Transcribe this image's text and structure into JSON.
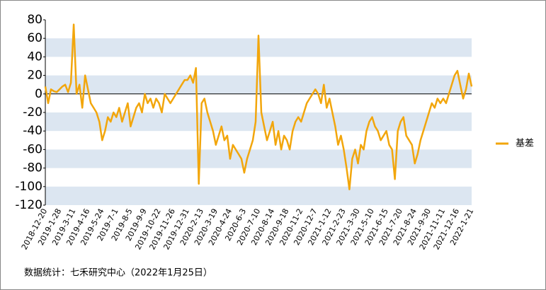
{
  "chart_data": {
    "type": "line",
    "categories": [
      "2018-12-20",
      null,
      null,
      null,
      null,
      "2019-1-28",
      null,
      null,
      null,
      null,
      "2019-3-11",
      null,
      null,
      null,
      null,
      "2019-4-16",
      null,
      null,
      null,
      null,
      "2019-5-24",
      null,
      null,
      null,
      null,
      "2019-7-1",
      null,
      null,
      null,
      null,
      "2019-8-5",
      null,
      null,
      null,
      null,
      "2019-9-9",
      null,
      null,
      null,
      null,
      "2019-10-22",
      null,
      null,
      null,
      null,
      "2019-11-26",
      null,
      null,
      null,
      null,
      "2019-12-31",
      null,
      null,
      null,
      null,
      "2020-2-13",
      null,
      null,
      null,
      null,
      "2020-3-19",
      null,
      null,
      null,
      null,
      "2020-4-24",
      null,
      null,
      null,
      null,
      "2020-6-3",
      null,
      null,
      null,
      null,
      "2020-7-10",
      null,
      null,
      null,
      null,
      "2020-8-14",
      null,
      null,
      null,
      null,
      "2020-9-18",
      null,
      null,
      null,
      null,
      "2020-11-2",
      null,
      null,
      null,
      null,
      "2020-12-7",
      null,
      null,
      null,
      null,
      "2021-1-12",
      null,
      null,
      null,
      null,
      "2021-2-23",
      null,
      null,
      null,
      null,
      "2021-3-30",
      null,
      null,
      null,
      null,
      "2021-5-10",
      null,
      null,
      null,
      null,
      "2021-6-15",
      null,
      null,
      null,
      null,
      "2021-7-20",
      null,
      null,
      null,
      null,
      "2021-8-24",
      null,
      null,
      null,
      null,
      "2021-9-30",
      null,
      null,
      null,
      null,
      "2021-11-11",
      null,
      null,
      null,
      null,
      "2021-12-16",
      null,
      null,
      null,
      null,
      "2022-1-21"
    ],
    "series": [
      {
        "name": "基差",
        "color": "#f2a60c",
        "values": [
          8,
          -10,
          5,
          3,
          2,
          5,
          8,
          10,
          2,
          12,
          75,
          0,
          10,
          -15,
          20,
          5,
          -10,
          -15,
          -20,
          -30,
          -50,
          -40,
          -25,
          -30,
          -20,
          -25,
          -15,
          -30,
          -20,
          -10,
          -35,
          -25,
          -15,
          -10,
          -20,
          0,
          -10,
          -5,
          -15,
          -5,
          -10,
          -20,
          0,
          -5,
          -10,
          -5,
          0,
          5,
          10,
          15,
          15,
          20,
          12,
          28,
          -97,
          -10,
          -5,
          -20,
          -30,
          -40,
          -55,
          -45,
          -35,
          -50,
          -45,
          -70,
          -55,
          -60,
          -65,
          -70,
          -85,
          -70,
          -60,
          -50,
          -30,
          63,
          -20,
          -35,
          -50,
          -40,
          -30,
          -55,
          -40,
          -60,
          -45,
          -50,
          -60,
          -40,
          -30,
          -25,
          -30,
          -20,
          -10,
          -5,
          0,
          5,
          0,
          -10,
          10,
          -15,
          -5,
          -20,
          -35,
          -55,
          -45,
          -60,
          -80,
          -103,
          -70,
          -60,
          -75,
          -55,
          -60,
          -40,
          -30,
          -25,
          -35,
          -40,
          -50,
          -45,
          -40,
          -55,
          -60,
          -92,
          -40,
          -30,
          -25,
          -45,
          -50,
          -55,
          -75,
          -65,
          -50,
          -40,
          -30,
          -20,
          -10,
          -15,
          -5,
          -10,
          -5,
          -10,
          0,
          10,
          20,
          25,
          10,
          -5,
          5,
          22,
          8
        ]
      }
    ],
    "ylim": [
      -120,
      80
    ],
    "yticks": [
      -120,
      -100,
      -80,
      -60,
      -40,
      -20,
      0,
      20,
      40,
      60,
      80
    ],
    "grid": true,
    "band_color": "#dce6f1",
    "legend": "right",
    "source": "数据统计：七禾研究中心（2022年1月25日）"
  }
}
